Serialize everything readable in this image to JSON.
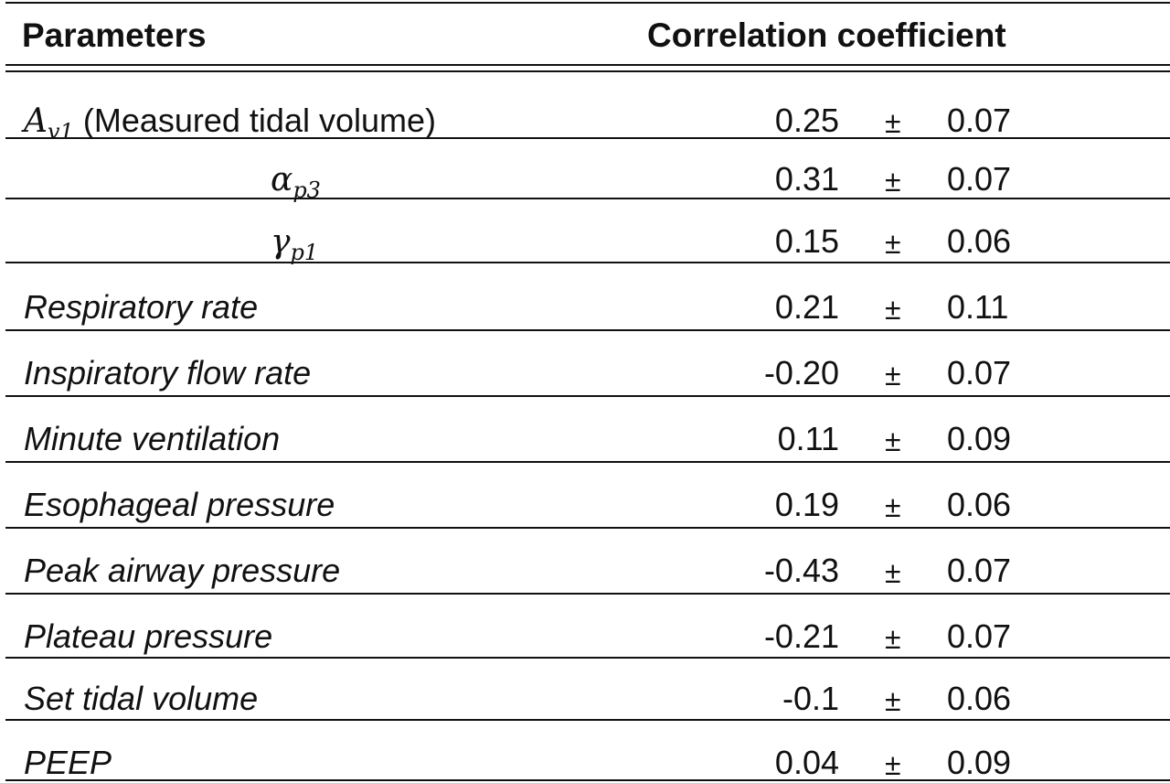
{
  "header": {
    "parameters": "Parameters",
    "correlation": "Correlation coefficient"
  },
  "rows": [
    {
      "param_main": "A",
      "param_sub": "v1",
      "param_text": "(Measured tidal volume)",
      "value": "0.25",
      "pm": "±",
      "error": "0.07"
    },
    {
      "param_main": "α",
      "param_sub": "p3",
      "value": "0.31",
      "pm": "±",
      "error": "0.07"
    },
    {
      "param_main": "γ",
      "param_sub": "p1",
      "value": "0.15",
      "pm": "±",
      "error": "0.06"
    },
    {
      "param": "Respiratory rate",
      "value": "0.21",
      "pm": "±",
      "error": "0.11"
    },
    {
      "param": "Inspiratory flow rate",
      "value": "-0.20",
      "pm": "±",
      "error": "0.07"
    },
    {
      "param": "Minute ventilation",
      "value": "0.11",
      "pm": "±",
      "error": "0.09"
    },
    {
      "param": "Esophageal pressure",
      "value": "0.19",
      "pm": "±",
      "error": "0.06"
    },
    {
      "param": "Peak airway pressure",
      "value": "-0.43",
      "pm": "±",
      "error": "0.07"
    },
    {
      "param": "Plateau pressure",
      "value": "-0.21",
      "pm": "±",
      "error": "0.07"
    },
    {
      "param": "Set tidal volume",
      "value": "-0.1",
      "pm": "±",
      "error": "0.06"
    },
    {
      "param": "PEEP",
      "value": "0.04",
      "pm": "±",
      "error": "0.09"
    }
  ]
}
